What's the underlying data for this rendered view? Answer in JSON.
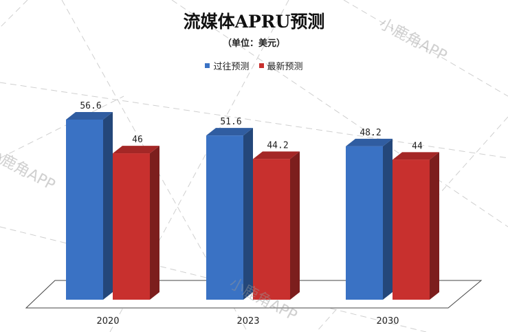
{
  "chart_data": {
    "type": "bar",
    "title": "流媒体APRU预测",
    "subtitle": "（单位：美元）",
    "categories": [
      "2020",
      "2023",
      "2030"
    ],
    "series": [
      {
        "name": "过往预测",
        "values": [
          56.6,
          51.6,
          48.2
        ],
        "color": "#3a72c4"
      },
      {
        "name": "最新预测",
        "values": [
          46,
          44.2,
          44
        ],
        "color": "#c8302e"
      }
    ],
    "value_labels": [
      [
        "56.6",
        "51.6",
        "48.2"
      ],
      [
        "46",
        "44.2",
        "44"
      ]
    ],
    "ylim": [
      0,
      60
    ],
    "legend_position": "top",
    "grid": false,
    "style": "3d"
  },
  "watermark": "小鹿角APP"
}
